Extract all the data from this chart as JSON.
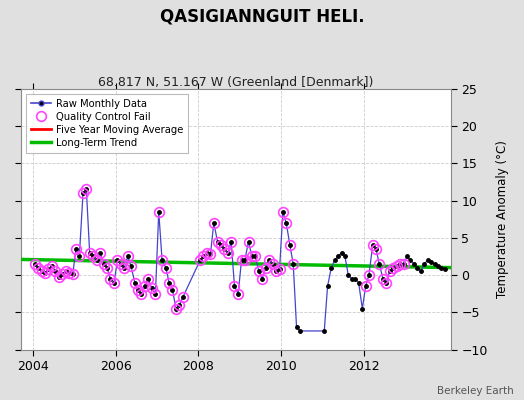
{
  "title": "QASIGIANNGUIT HELI.",
  "subtitle": "68.817 N, 51.167 W (Greenland [Denmark])",
  "ylabel": "Temperature Anomaly (°C)",
  "attribution": "Berkeley Earth",
  "xlim": [
    2003.7,
    2014.1
  ],
  "ylim": [
    -10,
    25
  ],
  "yticks": [
    -10,
    -5,
    0,
    5,
    10,
    15,
    20,
    25
  ],
  "xticks": [
    2004,
    2006,
    2008,
    2010,
    2012
  ],
  "background_color": "#e0e0e0",
  "plot_bg_color": "#ffffff",
  "raw_x": [
    2004.04,
    2004.12,
    2004.21,
    2004.29,
    2004.37,
    2004.46,
    2004.54,
    2004.62,
    2004.71,
    2004.79,
    2004.87,
    2004.96,
    2005.04,
    2005.12,
    2005.21,
    2005.29,
    2005.37,
    2005.46,
    2005.54,
    2005.62,
    2005.71,
    2005.79,
    2005.87,
    2005.96,
    2006.04,
    2006.12,
    2006.21,
    2006.29,
    2006.37,
    2006.46,
    2006.54,
    2006.62,
    2006.71,
    2006.79,
    2006.87,
    2006.96,
    2007.04,
    2007.12,
    2007.21,
    2007.29,
    2007.37,
    2007.46,
    2007.54,
    2007.62,
    2008.04,
    2008.12,
    2008.21,
    2008.29,
    2008.37,
    2008.46,
    2008.54,
    2008.62,
    2008.71,
    2008.79,
    2008.87,
    2008.96,
    2009.04,
    2009.12,
    2009.21,
    2009.29,
    2009.37,
    2009.46,
    2009.54,
    2009.62,
    2009.71,
    2009.79,
    2009.87,
    2009.96,
    2010.04,
    2010.12,
    2010.21,
    2010.29,
    2010.37,
    2010.46,
    2011.04,
    2011.12,
    2011.21,
    2011.29,
    2011.37,
    2011.46,
    2011.54,
    2011.62,
    2011.71,
    2011.79,
    2011.87,
    2011.96,
    2012.04,
    2012.12,
    2012.21,
    2012.29,
    2012.37,
    2012.46,
    2012.54,
    2012.62,
    2012.71,
    2012.79,
    2012.87,
    2012.96,
    2013.04,
    2013.12,
    2013.21,
    2013.29,
    2013.37,
    2013.46,
    2013.54,
    2013.62,
    2013.71,
    2013.79,
    2013.87,
    2013.96
  ],
  "raw_y": [
    1.5,
    1.0,
    0.5,
    0.3,
    0.8,
    1.2,
    0.6,
    -0.3,
    0.2,
    0.5,
    0.3,
    0.1,
    3.5,
    2.5,
    11.0,
    11.5,
    3.0,
    2.5,
    2.0,
    3.0,
    1.5,
    1.0,
    -0.5,
    -1.0,
    2.0,
    1.5,
    1.0,
    2.5,
    1.2,
    -1.0,
    -2.0,
    -2.5,
    -1.5,
    -0.5,
    -1.8,
    -2.5,
    8.5,
    2.0,
    1.0,
    -1.0,
    -2.0,
    -4.5,
    -4.0,
    -3.0,
    2.0,
    2.5,
    3.0,
    2.8,
    7.0,
    4.5,
    4.0,
    3.5,
    3.0,
    4.5,
    -1.5,
    -2.5,
    2.0,
    2.0,
    4.5,
    2.5,
    2.5,
    0.5,
    -0.5,
    1.0,
    2.0,
    1.5,
    0.5,
    0.8,
    8.5,
    7.0,
    4.0,
    1.5,
    -7.0,
    -7.5,
    -7.5,
    -1.5,
    1.0,
    2.0,
    2.5,
    3.0,
    2.5,
    0.0,
    -0.5,
    -0.5,
    -1.0,
    -4.5,
    -1.5,
    0.0,
    4.0,
    3.5,
    1.5,
    -0.5,
    -1.0,
    0.5,
    1.0,
    1.2,
    1.5,
    1.5,
    2.5,
    2.0,
    1.5,
    1.0,
    0.5,
    1.5,
    2.0,
    1.8,
    1.5,
    1.2,
    1.0,
    0.8
  ],
  "qc_fail_x": [
    2004.04,
    2004.12,
    2004.21,
    2004.29,
    2004.37,
    2004.46,
    2004.54,
    2004.62,
    2004.71,
    2004.79,
    2004.87,
    2004.96,
    2005.04,
    2005.12,
    2005.21,
    2005.29,
    2005.37,
    2005.46,
    2005.54,
    2005.62,
    2005.71,
    2005.79,
    2005.87,
    2005.96,
    2006.04,
    2006.12,
    2006.21,
    2006.29,
    2006.37,
    2006.46,
    2006.54,
    2006.62,
    2006.71,
    2006.79,
    2006.87,
    2006.96,
    2007.04,
    2007.12,
    2007.21,
    2007.29,
    2007.37,
    2007.46,
    2007.54,
    2007.62,
    2008.04,
    2008.12,
    2008.21,
    2008.29,
    2008.37,
    2008.46,
    2008.54,
    2008.62,
    2008.71,
    2008.79,
    2008.87,
    2008.96,
    2009.04,
    2009.12,
    2009.21,
    2009.29,
    2009.37,
    2009.46,
    2009.54,
    2009.62,
    2009.71,
    2009.79,
    2009.87,
    2009.96,
    2010.04,
    2010.12,
    2010.21,
    2010.29,
    2012.04,
    2012.12,
    2012.21,
    2012.29,
    2012.37,
    2012.46,
    2012.54,
    2012.62,
    2012.71,
    2012.79,
    2012.87,
    2012.96
  ],
  "qc_fail_y": [
    1.5,
    1.0,
    0.5,
    0.3,
    0.8,
    1.2,
    0.6,
    -0.3,
    0.2,
    0.5,
    0.3,
    0.1,
    3.5,
    2.5,
    11.0,
    11.5,
    3.0,
    2.5,
    2.0,
    3.0,
    1.5,
    1.0,
    -0.5,
    -1.0,
    2.0,
    1.5,
    1.0,
    2.5,
    1.2,
    -1.0,
    -2.0,
    -2.5,
    -1.5,
    -0.5,
    -1.8,
    -2.5,
    8.5,
    2.0,
    1.0,
    -1.0,
    -2.0,
    -4.5,
    -4.0,
    -3.0,
    2.0,
    2.5,
    3.0,
    2.8,
    7.0,
    4.5,
    4.0,
    3.5,
    3.0,
    4.5,
    -1.5,
    -2.5,
    2.0,
    2.0,
    4.5,
    2.5,
    2.5,
    0.5,
    -0.5,
    1.0,
    2.0,
    1.5,
    0.5,
    0.8,
    8.5,
    7.0,
    4.0,
    1.5,
    -1.5,
    0.0,
    4.0,
    3.5,
    1.5,
    -0.5,
    -1.0,
    0.5,
    1.0,
    1.2,
    1.5,
    1.5
  ],
  "trend_x": [
    2003.7,
    2014.1
  ],
  "trend_y": [
    2.1,
    1.0
  ],
  "line_color": "#4444cc",
  "dot_color": "#000000",
  "qc_color": "#ff44ff",
  "trend_color": "#00bb00",
  "moving_avg_color": "#ff0000"
}
